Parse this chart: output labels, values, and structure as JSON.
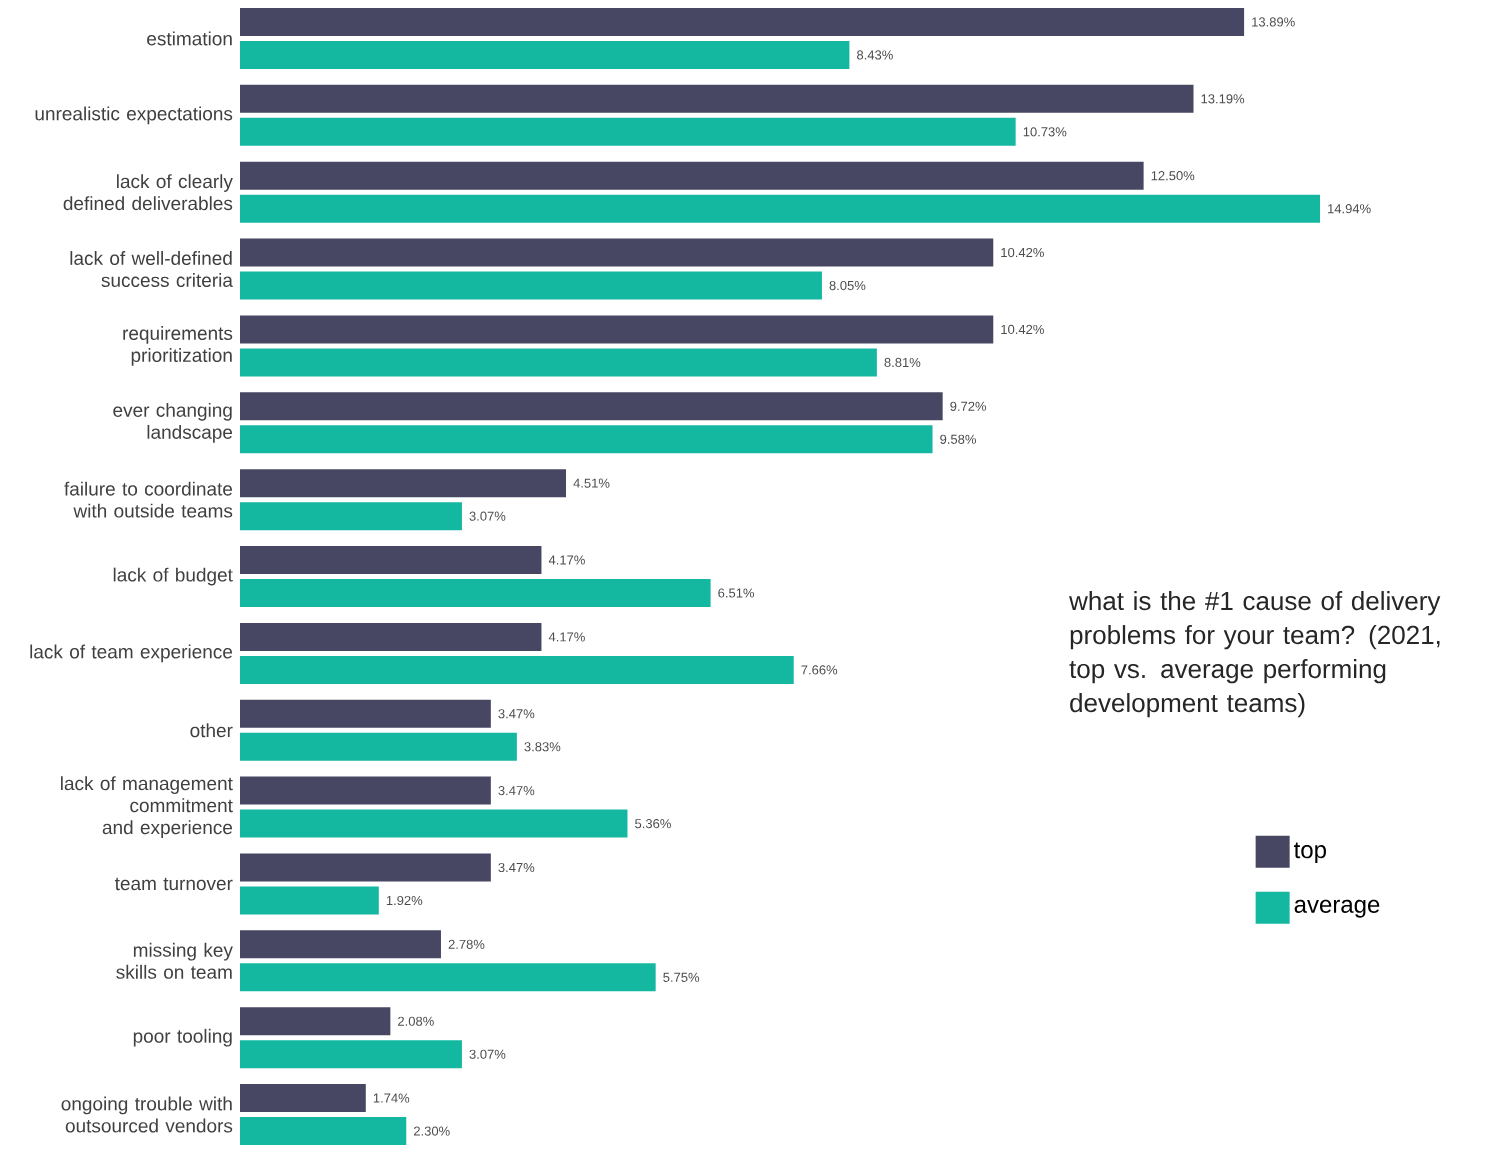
{
  "chart_data": {
    "type": "bar",
    "orientation": "horizontal",
    "title": "what is the #1 cause of delivery problems for your team? (2021, top vs. average performing development teams)",
    "categories": [
      "estimation",
      "unrealistic expectations",
      "lack of clearly defined deliverables",
      "lack of well-defined success criteria",
      "requirements prioritization",
      "ever changing landscape",
      "failure to coordinate with outside teams",
      "lack of budget",
      "lack of team experience",
      "other",
      "lack of management commitment and experience",
      "team turnover",
      "missing key skills on team",
      "poor tooling",
      "ongoing trouble with outsourced vendors"
    ],
    "series": [
      {
        "name": "top",
        "color": "#474763",
        "values": [
          13.89,
          13.19,
          12.5,
          10.42,
          10.42,
          9.72,
          4.51,
          4.17,
          4.17,
          3.47,
          3.47,
          3.47,
          2.78,
          2.08,
          1.74
        ],
        "value_labels": [
          "13.89%",
          "13.19%",
          "12.50%",
          "10.42%",
          "10.42%",
          "9.72%",
          "4.51%",
          "4.17%",
          "4.17%",
          "3.47%",
          "3.47%",
          "3.47%",
          "2.78%",
          "2.08%",
          "1.74%"
        ]
      },
      {
        "name": "average",
        "color": "#14b8a0",
        "values": [
          8.43,
          10.73,
          14.94,
          8.05,
          8.81,
          9.58,
          3.07,
          6.51,
          7.66,
          3.83,
          5.36,
          1.92,
          5.75,
          3.07,
          2.3
        ],
        "value_labels": [
          "8.43%",
          "10.73%",
          "14.94%",
          "8.05%",
          "8.81%",
          "9.58%",
          "3.07%",
          "6.51%",
          "7.66%",
          "3.83%",
          "5.36%",
          "1.92%",
          "5.75%",
          "3.07%",
          "2.30%"
        ]
      }
    ],
    "legend": "right",
    "tick_labels": "y"
  }
}
